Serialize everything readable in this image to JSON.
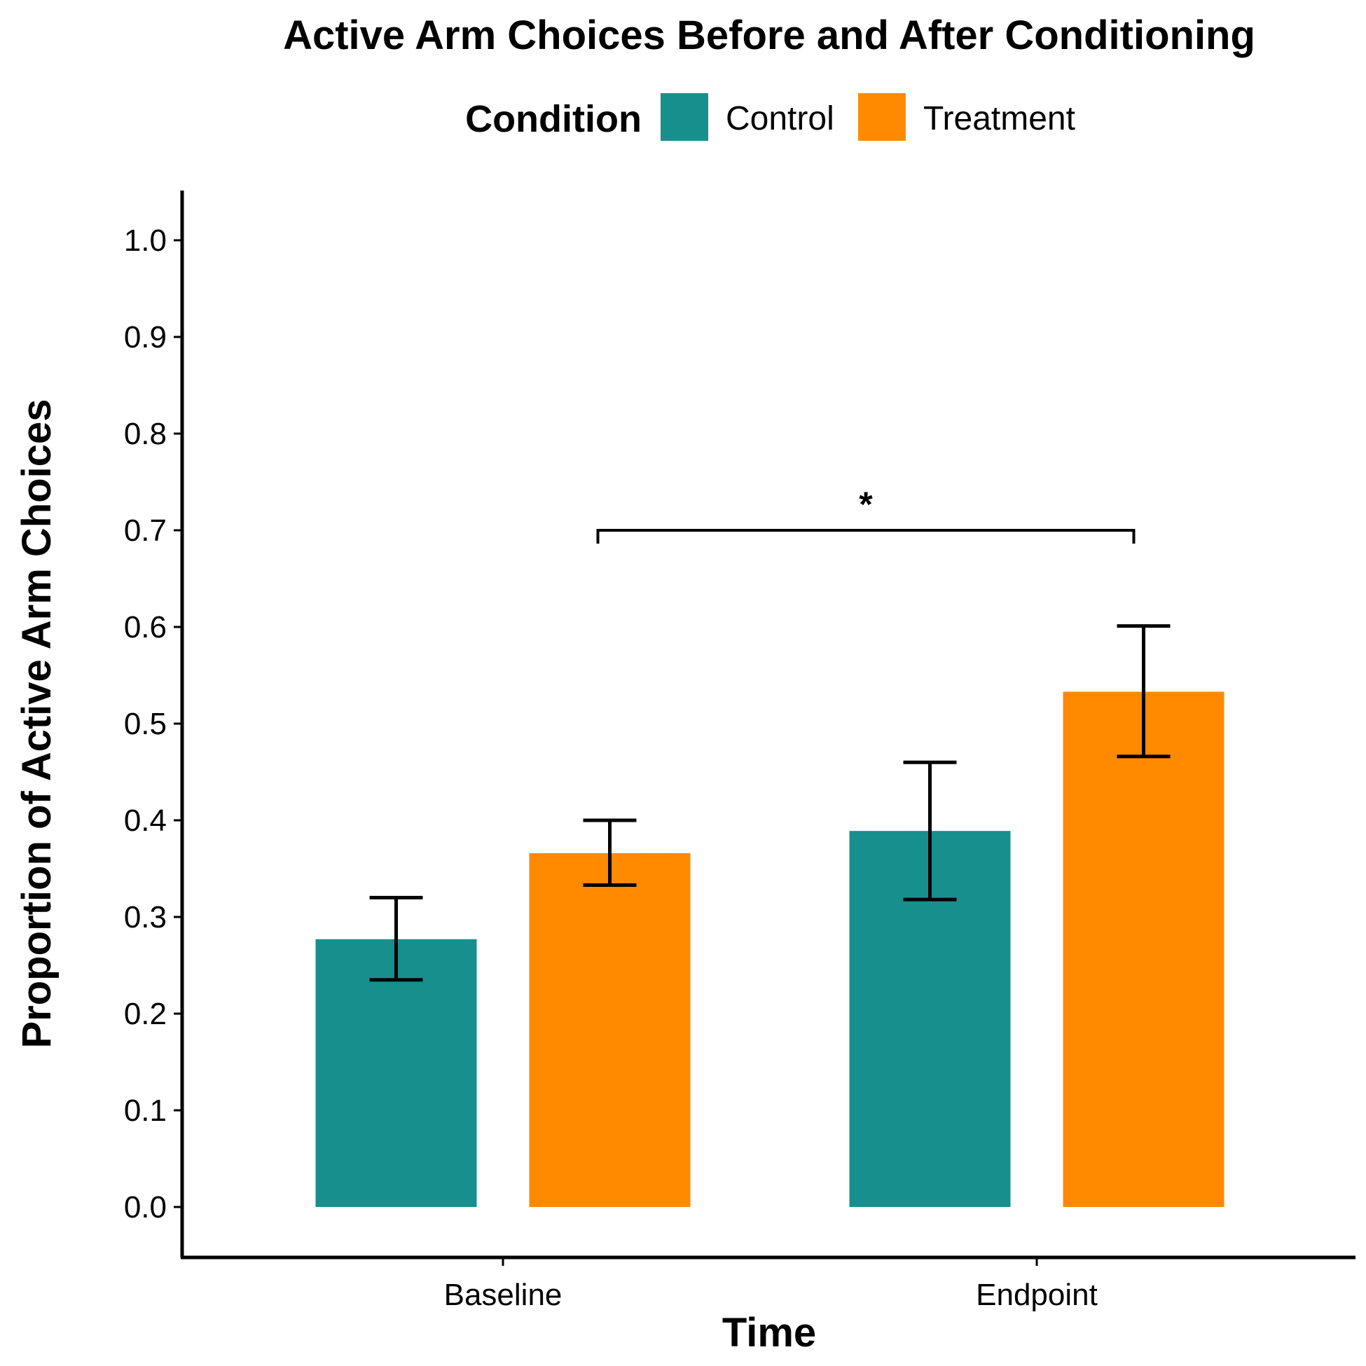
{
  "chart_data": {
    "type": "bar",
    "title": "Active Arm Choices Before and After Conditioning",
    "xlabel": "Time",
    "ylabel": "Proportion of Active Arm Choices",
    "categories": [
      "Baseline",
      "Endpoint"
    ],
    "legend": {
      "title": "Condition",
      "placement": "top"
    },
    "series": [
      {
        "name": "Control",
        "color": "#168F8D",
        "values": [
          0.277,
          0.389
        ],
        "error_low": [
          0.235,
          0.318
        ],
        "error_high": [
          0.32,
          0.46
        ]
      },
      {
        "name": "Treatment",
        "color": "#FF8A00",
        "values": [
          0.366,
          0.533
        ],
        "error_low": [
          0.333,
          0.466
        ],
        "error_high": [
          0.4,
          0.601
        ]
      }
    ],
    "ylim": [
      -0.05,
      1.05
    ],
    "yticks": [
      "0.0",
      "0.1",
      "0.2",
      "0.3",
      "0.4",
      "0.5",
      "0.6",
      "0.7",
      "0.8",
      "0.9",
      "1.0"
    ],
    "grid": false,
    "annotations": [
      {
        "type": "significance-bracket",
        "label": "*",
        "from": "Baseline / Treatment",
        "to": "Endpoint / Treatment",
        "y": 0.7
      }
    ]
  }
}
